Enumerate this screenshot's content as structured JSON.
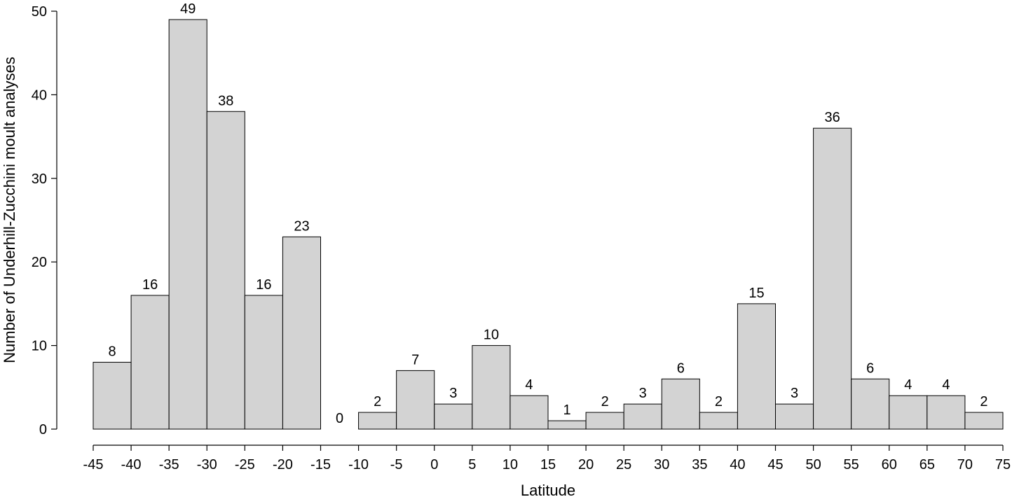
{
  "chart_data": {
    "type": "bar",
    "title": "",
    "xlabel": "Latitude",
    "ylabel": "Number of Underhill-Zucchini moult analyses",
    "bin_edges": [
      -45,
      -40,
      -35,
      -30,
      -25,
      -20,
      -15,
      -10,
      -5,
      0,
      5,
      10,
      15,
      20,
      25,
      30,
      35,
      40,
      45,
      50,
      55,
      60,
      65,
      70,
      75
    ],
    "values": [
      8,
      16,
      49,
      38,
      16,
      23,
      0,
      2,
      7,
      3,
      10,
      4,
      1,
      2,
      3,
      6,
      2,
      15,
      3,
      36,
      6,
      4,
      4,
      2
    ],
    "data_labels": [
      "8",
      "16",
      "49",
      "38",
      "16",
      "23",
      "0",
      "2",
      "7",
      "3",
      "10",
      "4",
      "1",
      "2",
      "3",
      "6",
      "2",
      "15",
      "3",
      "36",
      "6",
      "4",
      "4",
      "2"
    ],
    "x_ticks": [
      -45,
      -40,
      -35,
      -30,
      -25,
      -20,
      -15,
      -10,
      -5,
      0,
      5,
      10,
      15,
      20,
      25,
      30,
      35,
      40,
      45,
      50,
      55,
      60,
      65,
      70,
      75
    ],
    "x_tick_labels": [
      "-45",
      "-40",
      "-35",
      "-30",
      "-25",
      "-20",
      "-15",
      "-10",
      "-5",
      "0",
      "5",
      "10",
      "15",
      "20",
      "25",
      "30",
      "35",
      "40",
      "45",
      "50",
      "55",
      "60",
      "65",
      "70",
      "75"
    ],
    "y_ticks": [
      0,
      10,
      20,
      30,
      40,
      50
    ],
    "y_tick_labels": [
      "0",
      "10",
      "20",
      "30",
      "40",
      "50"
    ],
    "xlim": [
      -45,
      75
    ],
    "ylim": [
      0,
      50
    ],
    "grid": false,
    "legend": "none",
    "bar_fill": "#d3d3d3",
    "bar_stroke": "#000000"
  }
}
